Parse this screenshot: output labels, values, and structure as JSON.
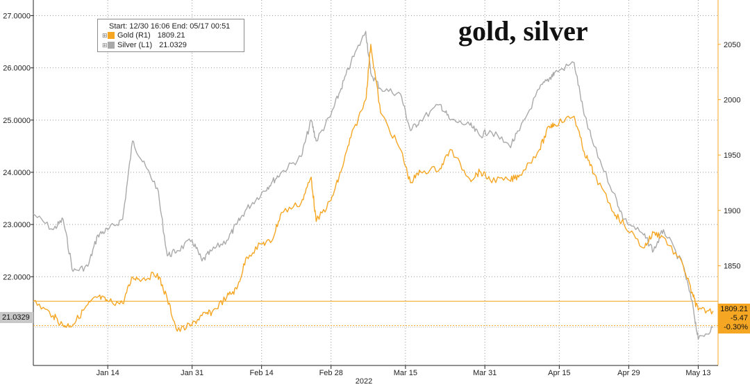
{
  "headline": "gold, silver",
  "legend": {
    "range_text": "Start: 12/30 16:06 End: 05/17 00:51",
    "gold_label": "Gold (R1)",
    "gold_value": "1809.21",
    "silver_label": "Silver (L1)",
    "silver_value": "21.0329"
  },
  "colors": {
    "gold": "#f5a623",
    "silver": "#a9a9a9",
    "gold_dotted": "#f5a623",
    "silver_flag": "#c8c8c8"
  },
  "flags": {
    "silver_last": "21.0329",
    "gold_last": "1809.21",
    "gold_change": "-5.47",
    "gold_change_pct": "-0.30%"
  },
  "chart_data": {
    "type": "line",
    "title": "gold, silver",
    "xlabel": "2022",
    "x_ticks": [
      "Jan 14",
      "Jan 31",
      "Feb 14",
      "Feb 28",
      "Mar 15",
      "Mar 31",
      "Apr 15",
      "Apr 29",
      "May 13"
    ],
    "left_axis": {
      "ticks": [
        "27.0000",
        "26.0000",
        "25.0000",
        "24.0000",
        "23.0000",
        "22.0000"
      ],
      "ylim": [
        20.3,
        27.3
      ]
    },
    "right_axis": {
      "ticks": [
        "2050",
        "2000",
        "1950",
        "1900",
        "1850"
      ],
      "ylim": [
        1760,
        2090
      ]
    },
    "grid": true,
    "legend_position": "top-left",
    "series": [
      {
        "name": "Silver (L1)",
        "axis": "left",
        "color": "#a9a9a9",
        "x": [
          "2021-12-30",
          "2022-01-03",
          "2022-01-05",
          "2022-01-07",
          "2022-01-10",
          "2022-01-12",
          "2022-01-14",
          "2022-01-17",
          "2022-01-19",
          "2022-01-21",
          "2022-01-24",
          "2022-01-26",
          "2022-01-28",
          "2022-01-31",
          "2022-02-02",
          "2022-02-04",
          "2022-02-07",
          "2022-02-09",
          "2022-02-11",
          "2022-02-14",
          "2022-02-16",
          "2022-02-18",
          "2022-02-22",
          "2022-02-24",
          "2022-02-25",
          "2022-02-28",
          "2022-03-02",
          "2022-03-04",
          "2022-03-07",
          "2022-03-08",
          "2022-03-10",
          "2022-03-14",
          "2022-03-16",
          "2022-03-18",
          "2022-03-22",
          "2022-03-24",
          "2022-03-28",
          "2022-03-30",
          "2022-04-01",
          "2022-04-05",
          "2022-04-07",
          "2022-04-11",
          "2022-04-13",
          "2022-04-14",
          "2022-04-18",
          "2022-04-20",
          "2022-04-22",
          "2022-04-26",
          "2022-04-28",
          "2022-05-02",
          "2022-05-04",
          "2022-05-06",
          "2022-05-10",
          "2022-05-12",
          "2022-05-13",
          "2022-05-16"
        ],
        "values": [
          23.2,
          22.9,
          23.1,
          22.1,
          22.2,
          22.8,
          22.9,
          23.1,
          24.6,
          24.2,
          23.7,
          22.4,
          22.5,
          22.7,
          22.3,
          22.5,
          22.7,
          23.0,
          23.3,
          23.6,
          23.8,
          24.0,
          24.3,
          25.0,
          24.6,
          25.1,
          25.6,
          26.1,
          26.7,
          25.9,
          25.6,
          25.5,
          24.8,
          25.0,
          25.3,
          25.0,
          24.9,
          24.7,
          24.8,
          24.5,
          24.8,
          25.6,
          25.8,
          25.9,
          26.1,
          25.1,
          24.5,
          23.6,
          23.1,
          22.8,
          22.5,
          22.9,
          22.2,
          21.4,
          20.8,
          21.03
        ]
      },
      {
        "name": "Gold (R1)",
        "axis": "right",
        "color": "#f5a623",
        "x": [
          "2021-12-30",
          "2022-01-03",
          "2022-01-05",
          "2022-01-07",
          "2022-01-10",
          "2022-01-12",
          "2022-01-14",
          "2022-01-17",
          "2022-01-19",
          "2022-01-21",
          "2022-01-24",
          "2022-01-26",
          "2022-01-28",
          "2022-01-31",
          "2022-02-02",
          "2022-02-04",
          "2022-02-07",
          "2022-02-09",
          "2022-02-11",
          "2022-02-14",
          "2022-02-16",
          "2022-02-18",
          "2022-02-22",
          "2022-02-24",
          "2022-02-25",
          "2022-02-28",
          "2022-03-02",
          "2022-03-04",
          "2022-03-07",
          "2022-03-08",
          "2022-03-10",
          "2022-03-14",
          "2022-03-16",
          "2022-03-18",
          "2022-03-22",
          "2022-03-24",
          "2022-03-28",
          "2022-03-30",
          "2022-04-01",
          "2022-04-05",
          "2022-04-07",
          "2022-04-11",
          "2022-04-13",
          "2022-04-14",
          "2022-04-18",
          "2022-04-20",
          "2022-04-22",
          "2022-04-26",
          "2022-04-28",
          "2022-05-02",
          "2022-05-04",
          "2022-05-06",
          "2022-05-10",
          "2022-05-12",
          "2022-05-13",
          "2022-05-16"
        ],
        "values": [
          1818,
          1805,
          1796,
          1797,
          1815,
          1822,
          1818,
          1816,
          1840,
          1838,
          1843,
          1820,
          1791,
          1797,
          1805,
          1808,
          1822,
          1829,
          1858,
          1870,
          1872,
          1898,
          1907,
          1930,
          1890,
          1909,
          1935,
          1966,
          2000,
          2050,
          1988,
          1955,
          1925,
          1935,
          1938,
          1955,
          1928,
          1935,
          1928,
          1927,
          1932,
          1955,
          1976,
          1978,
          1985,
          1953,
          1933,
          1898,
          1888,
          1866,
          1880,
          1876,
          1850,
          1822,
          1810,
          1809.21
        ]
      }
    ]
  }
}
